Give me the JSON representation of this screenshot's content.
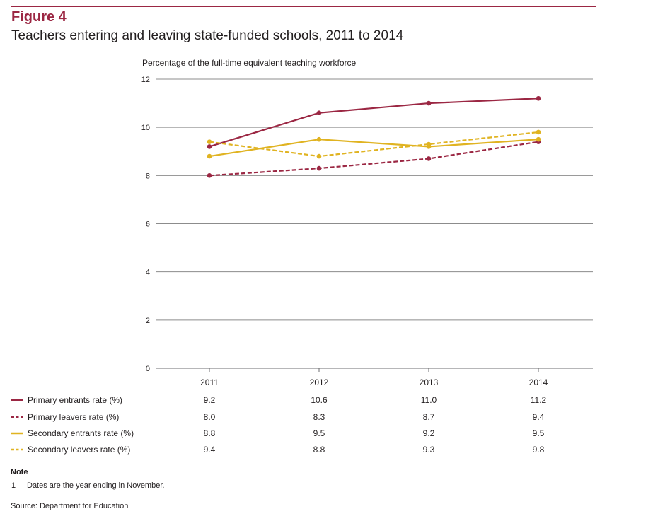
{
  "figure": {
    "label": "Figure 4",
    "title": "Teachers entering and leaving state-funded schools, 2011 to 2014"
  },
  "chart_data": {
    "type": "line",
    "title": "Teachers entering and leaving state-funded schools, 2011 to 2014",
    "ylabel": "Percentage of the full-time equivalent teaching workforce",
    "xlabel": "",
    "categories": [
      "2011",
      "2012",
      "2013",
      "2014"
    ],
    "ylim": [
      0,
      12
    ],
    "yticks": [
      0,
      2,
      4,
      6,
      8,
      10,
      12
    ],
    "grid": true,
    "legend": "bottom-left",
    "series": [
      {
        "name": "Primary entrants rate (%)",
        "values": [
          9.2,
          10.6,
          11.0,
          11.2
        ],
        "labels": [
          "9.2",
          "10.6",
          "11.0",
          "11.2"
        ],
        "color": "#9b2743",
        "dashed": false
      },
      {
        "name": "Primary leavers rate (%)",
        "values": [
          8.0,
          8.3,
          8.7,
          9.4
        ],
        "labels": [
          "8.0",
          "8.3",
          "8.7",
          "9.4"
        ],
        "color": "#9b2743",
        "dashed": true
      },
      {
        "name": "Secondary entrants rate (%)",
        "values": [
          8.8,
          9.5,
          9.2,
          9.5
        ],
        "labels": [
          "8.8",
          "9.5",
          "9.2",
          "9.5"
        ],
        "color": "#e0b321",
        "dashed": false
      },
      {
        "name": "Secondary leavers rate (%)",
        "values": [
          9.4,
          8.8,
          9.3,
          9.8
        ],
        "labels": [
          "9.4",
          "8.8",
          "9.3",
          "9.8"
        ],
        "color": "#e0b321",
        "dashed": true
      }
    ]
  },
  "note": {
    "heading": "Note",
    "number": "1",
    "text": "Dates are the year ending in November."
  },
  "source": "Source: Department for Education"
}
